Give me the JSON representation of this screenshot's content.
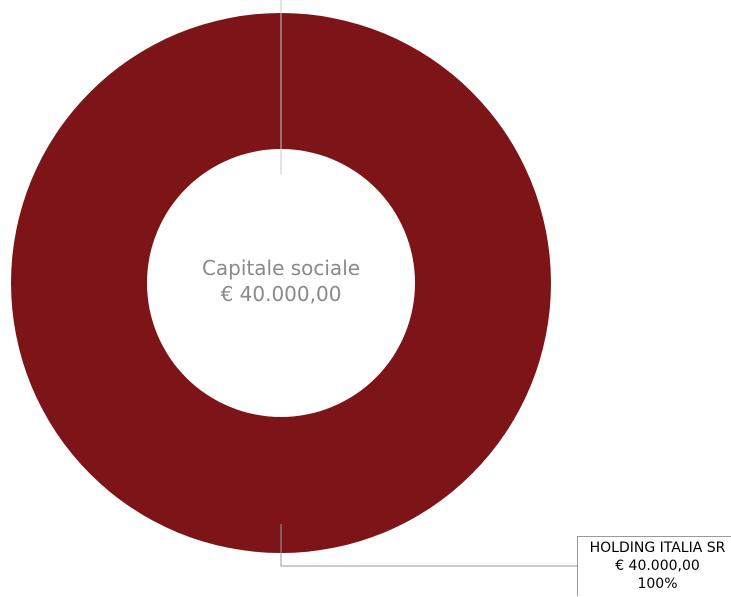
{
  "chart_data": {
    "type": "pie",
    "center_title": "Capitale sociale",
    "center_value": "€ 40.000,00",
    "categories": [
      "HOLDING ITALIA SRL"
    ],
    "values": [
      40000
    ],
    "value_labels": [
      "€ 40.000,00"
    ],
    "percent_labels": [
      "100%"
    ],
    "colors": [
      "#7d1418"
    ],
    "style": "donut"
  },
  "legend": {
    "name": "HOLDING ITALIA SR",
    "value": "€ 40.000,00",
    "percent": "100%"
  },
  "colors": {
    "slice": "#7d1418",
    "center_text": "#8a8a8a",
    "leader_line": "#9a9a9a"
  }
}
